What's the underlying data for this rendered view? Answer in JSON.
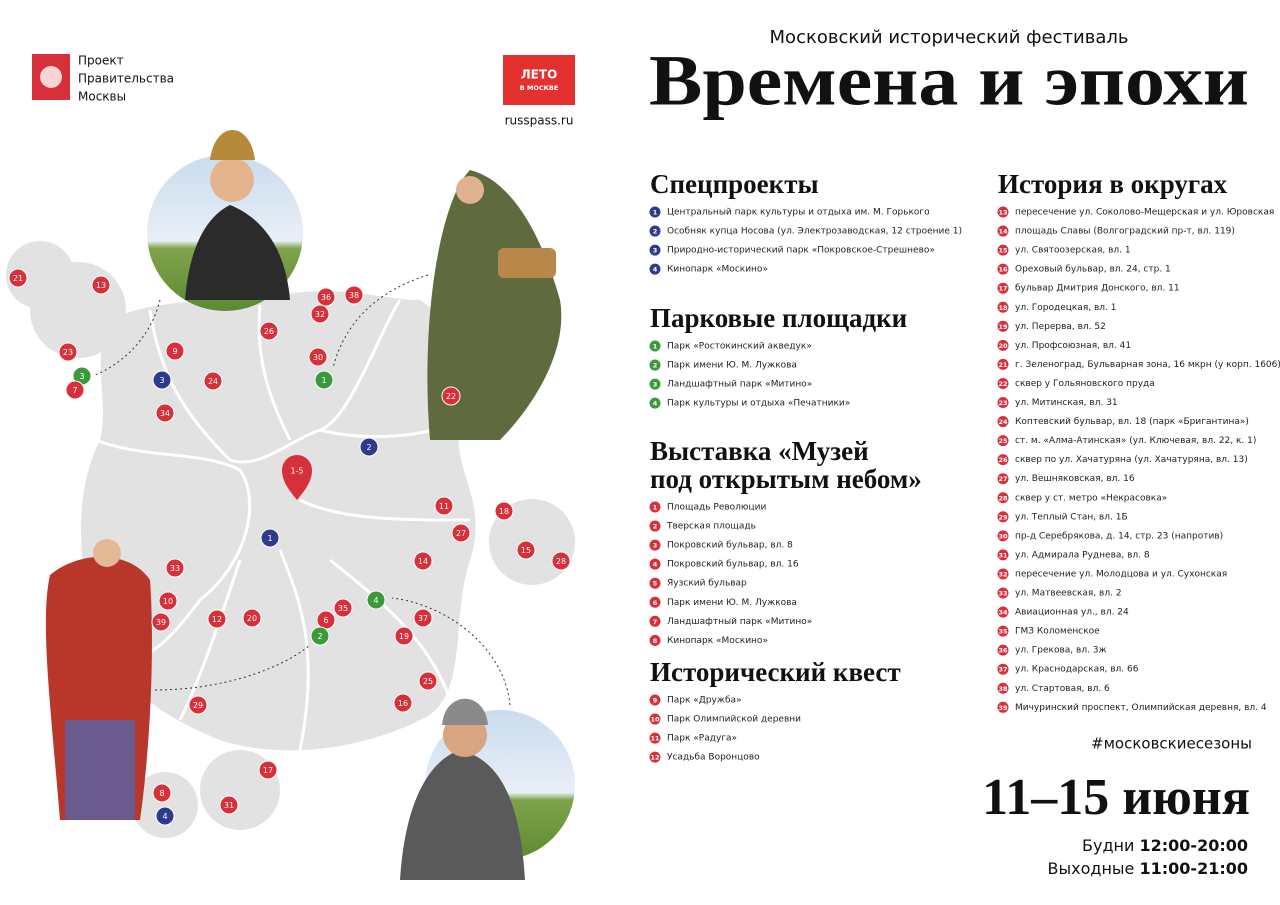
{
  "header": {
    "org_lines": [
      "Проект",
      "Правительства",
      "Москвы"
    ],
    "badge_lines": [
      "ЛЕТО",
      "В МОСКВЕ"
    ],
    "site": "russpass.ru"
  },
  "festival": {
    "subtitle": "Московский исторический фестиваль",
    "title": "Времена и эпохи"
  },
  "sections": [
    {
      "title": [
        "Спецпроекты"
      ],
      "color": "#2e3a8c",
      "items": [
        {
          "num": "1",
          "text": "Центральный парк культуры и отдыха им. М. Горького"
        },
        {
          "num": "2",
          "text": "Особняк купца Носова (ул. Электрозаводская, 12 строение 1)"
        },
        {
          "num": "3",
          "text": "Природно-исторический парк «Покровское-Стрешнево»"
        },
        {
          "num": "4",
          "text": "Кинопарк «Москино»"
        }
      ]
    },
    {
      "title": [
        "Парковые площадки"
      ],
      "color": "#3a9a3c",
      "items": [
        {
          "num": "1",
          "text": "Парк «Ростокинский акведук»"
        },
        {
          "num": "2",
          "text": "Парк имени Ю. М. Лужкова"
        },
        {
          "num": "3",
          "text": "Ландшафтный парк «Митино»"
        },
        {
          "num": "4",
          "text": "Парк культуры и отдыха «Печатники»"
        }
      ]
    },
    {
      "title": [
        "Выставка «Музей",
        "под открытым небом»"
      ],
      "color": "#d8303a",
      "items": [
        {
          "num": "1",
          "text": "Площадь Революции"
        },
        {
          "num": "2",
          "text": "Тверская площадь"
        },
        {
          "num": "3",
          "text": "Покровский бульвар, вл. 8"
        },
        {
          "num": "4",
          "text": "Покровский бульвар, вл. 16"
        },
        {
          "num": "5",
          "text": "Яузский бульвар"
        },
        {
          "num": "6",
          "text": "Парк имени Ю. М. Лужкова"
        },
        {
          "num": "7",
          "text": "Ландшафтный парк «Митино»"
        },
        {
          "num": "8",
          "text": "Кинопарк «Москино»"
        }
      ]
    },
    {
      "title": [
        "Исторический квест"
      ],
      "color": "#d8303a",
      "items": [
        {
          "num": "9",
          "text": "Парк «Дружба»"
        },
        {
          "num": "10",
          "text": "Парк Олимпийской деревни"
        },
        {
          "num": "11",
          "text": "Парк «Радуга»"
        },
        {
          "num": "12",
          "text": "Усадьба Воронцово"
        }
      ]
    },
    {
      "title": [
        "История в округах"
      ],
      "color": "#d8303a",
      "items": [
        {
          "num": "13",
          "text": "пересечение ул. Соколово-Мещерская и ул. Юровская"
        },
        {
          "num": "14",
          "text": "площадь Славы (Волгоградский пр-т, вл. 119)"
        },
        {
          "num": "15",
          "text": "ул. Святоозерская, вл. 1"
        },
        {
          "num": "16",
          "text": "Ореховый бульвар, вл. 24, стр. 1"
        },
        {
          "num": "17",
          "text": "бульвар Дмитрия Донского, вл. 11"
        },
        {
          "num": "18",
          "text": "ул. Городецкая, вл. 1"
        },
        {
          "num": "19",
          "text": "ул. Перерва, вл. 52"
        },
        {
          "num": "20",
          "text": "ул. Профсоюзная, вл. 41"
        },
        {
          "num": "21",
          "text": "г. Зеленоград, Бульварная зона, 16 мкрн (у корп. 1606)"
        },
        {
          "num": "22",
          "text": "сквер у Гольяновского пруда"
        },
        {
          "num": "23",
          "text": "ул. Митинская, вл. 31"
        },
        {
          "num": "24",
          "text": "Коптевский бульвар, вл. 18 (парк «Бригантина»)"
        },
        {
          "num": "25",
          "text": "ст. м. «Алма-Атинская» (ул. Ключевая, вл. 22, к. 1)"
        },
        {
          "num": "26",
          "text": "сквер по ул. Хачатуряна (ул. Хачатуряна, вл. 13)"
        },
        {
          "num": "27",
          "text": "ул. Вешняковская, вл. 16"
        },
        {
          "num": "28",
          "text": "сквер у ст. метро «Некрасовка»"
        },
        {
          "num": "29",
          "text": "ул. Теплый Стан, вл. 1Б"
        },
        {
          "num": "30",
          "text": "пр-д Серебрякова, д. 14, стр. 23 (напротив)"
        },
        {
          "num": "31",
          "text": "ул. Адмирала Руднева, вл. 8"
        },
        {
          "num": "32",
          "text": "пересечение ул. Молодцова и ул. Сухонская"
        },
        {
          "num": "33",
          "text": "ул. Матвеевская, вл. 2"
        },
        {
          "num": "34",
          "text": "Авиационная ул., вл. 24"
        },
        {
          "num": "35",
          "text": "ГМЗ Коломенское"
        },
        {
          "num": "36",
          "text": "ул. Грекова, вл. 3ж"
        },
        {
          "num": "37",
          "text": "ул. Краснодарская, вл. 66"
        },
        {
          "num": "38",
          "text": "ул. Стартовая, вл. 6"
        },
        {
          "num": "39",
          "text": "Мичуринский проспект, Олимпийская деревня, вл. 4"
        }
      ]
    }
  ],
  "hashtag": "#московскиесезоны",
  "dates": "11–15 июня",
  "schedule": [
    {
      "label": "Будни",
      "time": "12:00-20:00"
    },
    {
      "label": "Выходные",
      "time": "11:00-21:00"
    }
  ],
  "map_markers": [
    {
      "label": "21",
      "color": "#d8303a"
    },
    {
      "label": "13",
      "color": "#d8303a"
    },
    {
      "label": "23",
      "color": "#d8303a"
    },
    {
      "label": "3",
      "color": "#3a9a3c"
    },
    {
      "label": "7",
      "color": "#d8303a"
    },
    {
      "label": "9",
      "color": "#d8303a"
    },
    {
      "label": "3",
      "color": "#2e3a8c"
    },
    {
      "label": "24",
      "color": "#d8303a"
    },
    {
      "label": "34",
      "color": "#d8303a"
    },
    {
      "label": "26",
      "color": "#d8303a"
    },
    {
      "label": "36",
      "color": "#d8303a"
    },
    {
      "label": "38",
      "color": "#d8303a"
    },
    {
      "label": "32",
      "color": "#d8303a"
    },
    {
      "label": "30",
      "color": "#d8303a"
    },
    {
      "label": "1",
      "color": "#3a9a3c"
    },
    {
      "label": "22",
      "color": "#d8303a"
    },
    {
      "label": "2",
      "color": "#2e3a8c"
    },
    {
      "label": "11",
      "color": "#d8303a"
    },
    {
      "label": "18",
      "color": "#d8303a"
    },
    {
      "label": "27",
      "color": "#d8303a"
    },
    {
      "label": "15",
      "color": "#d8303a"
    },
    {
      "label": "28",
      "color": "#d8303a"
    },
    {
      "label": "1",
      "color": "#2e3a8c"
    },
    {
      "label": "14",
      "color": "#d8303a"
    },
    {
      "label": "33",
      "color": "#d8303a"
    },
    {
      "label": "10",
      "color": "#d8303a"
    },
    {
      "label": "39",
      "color": "#d8303a"
    },
    {
      "label": "12",
      "color": "#d8303a"
    },
    {
      "label": "20",
      "color": "#d8303a"
    },
    {
      "label": "35",
      "color": "#d8303a"
    },
    {
      "label": "6",
      "color": "#d8303a"
    },
    {
      "label": "2",
      "color": "#3a9a3c"
    },
    {
      "label": "4",
      "color": "#3a9a3c"
    },
    {
      "label": "37",
      "color": "#d8303a"
    },
    {
      "label": "19",
      "color": "#d8303a"
    },
    {
      "label": "25",
      "color": "#d8303a"
    },
    {
      "label": "16",
      "color": "#d8303a"
    },
    {
      "label": "29",
      "color": "#d8303a"
    },
    {
      "label": "17",
      "color": "#d8303a"
    },
    {
      "label": "8",
      "color": "#d8303a"
    },
    {
      "label": "4",
      "color": "#2e3a8c"
    },
    {
      "label": "31",
      "color": "#d8303a"
    }
  ],
  "center_pin": {
    "label": "1-5",
    "color": "#d8303a"
  }
}
